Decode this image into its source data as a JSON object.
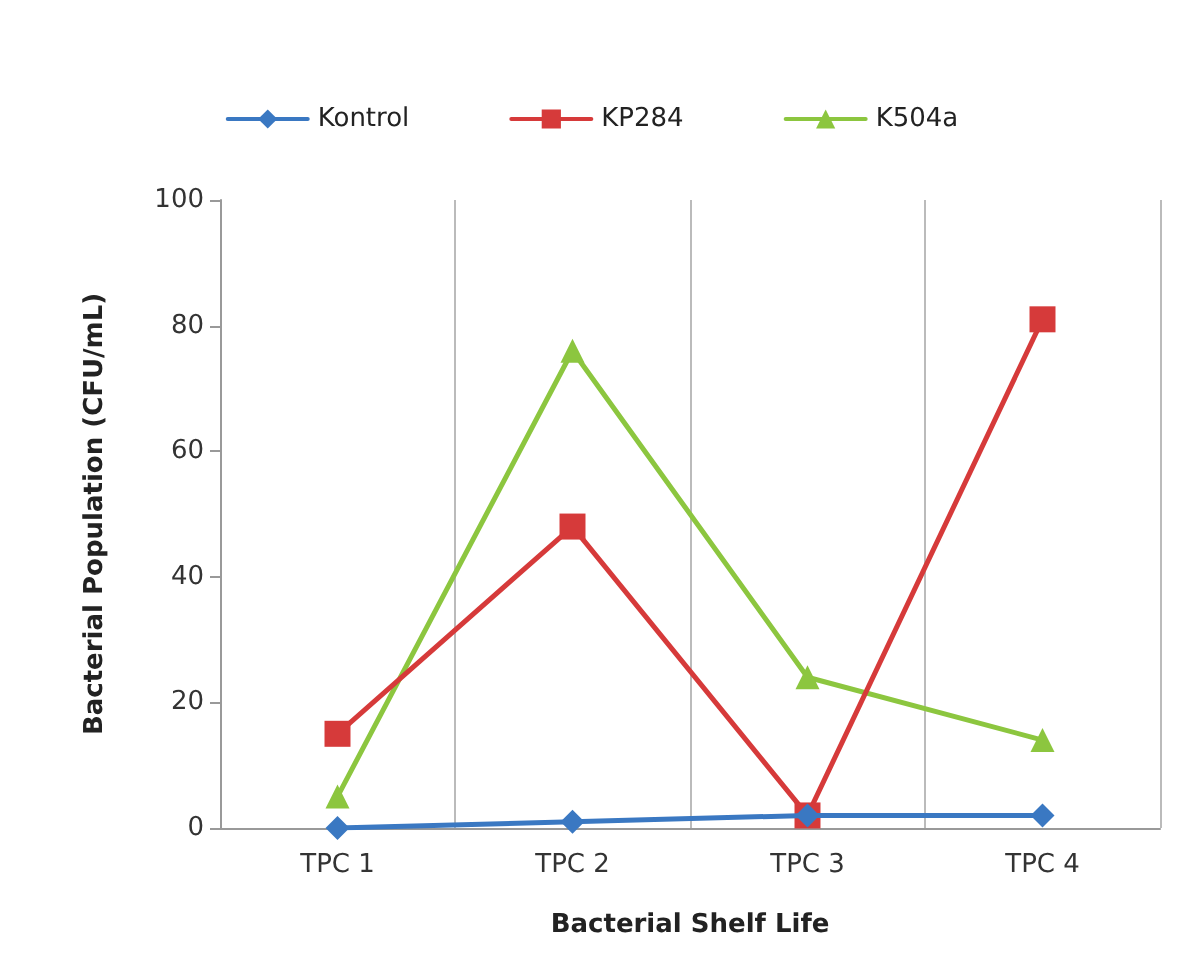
{
  "chart_data": {
    "type": "line",
    "xlabel": "Bacterial Shelf Life",
    "ylabel": "Bacterial Population (CFU/mL)",
    "categories": [
      "TPC 1",
      "TPC 2",
      "TPC 3",
      "TPC 4"
    ],
    "series": [
      {
        "name": "Kontrol",
        "color": "#3a78c2",
        "marker": "diamond",
        "values": [
          0,
          1,
          2,
          2
        ]
      },
      {
        "name": "KP284",
        "color": "#d63a3a",
        "marker": "square",
        "values": [
          15,
          48,
          2,
          81
        ]
      },
      {
        "name": "K504a",
        "color": "#8cc63f",
        "marker": "triangle",
        "values": [
          5,
          76,
          24,
          14
        ]
      }
    ],
    "ylim": [
      0,
      100
    ],
    "yticks": [
      0,
      20,
      40,
      60,
      80,
      100
    ],
    "grid": "x",
    "legend": "top",
    "line_style": "solid"
  }
}
